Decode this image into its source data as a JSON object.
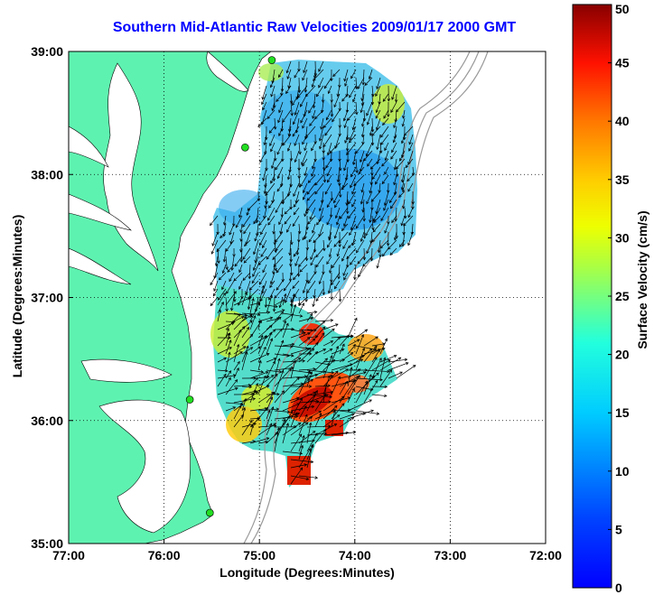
{
  "title": "Southern Mid-Atlantic Raw Velocities 2009/01/17 2000 GMT",
  "x_axis": {
    "label": "Longitude (Degrees:Minutes)",
    "ticks": [
      "77:00",
      "76:00",
      "75:00",
      "74:00",
      "73:00",
      "72:00"
    ]
  },
  "y_axis": {
    "label": "Latitude (Degrees:Minutes)",
    "ticks": [
      "39:00",
      "38:00",
      "37:00",
      "36:00",
      "35:00"
    ]
  },
  "colorbar": {
    "label": "Surface Velocity (cm/s)",
    "ticks": [
      "50",
      "45",
      "40",
      "35",
      "30",
      "25",
      "20",
      "15",
      "10",
      "5",
      "0"
    ],
    "min": 0,
    "max": 50
  },
  "map_extent": {
    "lon": [
      -77,
      -72
    ],
    "lat": [
      35,
      39
    ]
  },
  "colors": {
    "land": "#5ef2b0",
    "title": "#0000ff",
    "station": "#22dd22",
    "arrows": "#000000",
    "bathymetry": "#999999"
  },
  "stations": [
    {
      "lon": -74.87,
      "lat": 38.93
    },
    {
      "lon": -75.15,
      "lat": 38.22
    },
    {
      "lon": -75.73,
      "lat": 36.17
    },
    {
      "lon": -75.52,
      "lat": 35.25
    }
  ]
}
